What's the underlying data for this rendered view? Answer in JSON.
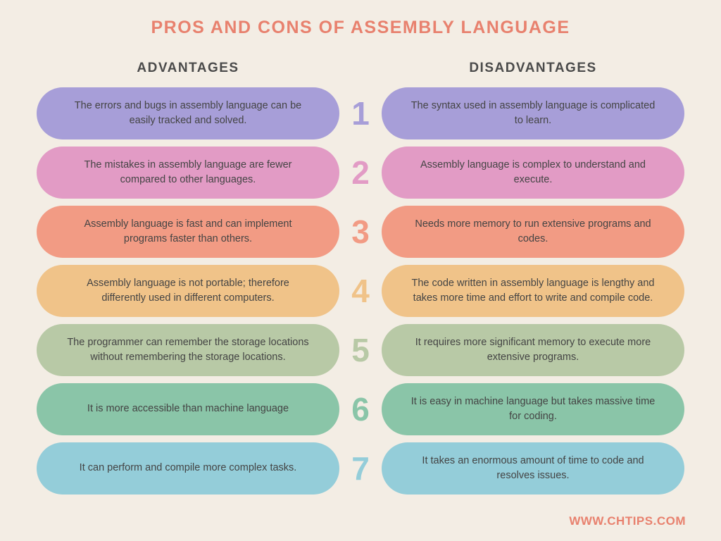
{
  "title": "PROS AND CONS OF ASSEMBLY LANGUAGE",
  "title_color": "#e8816e",
  "left_header": "ADVANTAGES",
  "right_header": "DISADVANTAGES",
  "header_color": "#4a4a4a",
  "footer": "WWW.CHTIPS.COM",
  "footer_color": "#e8816e",
  "background_color": "#f3ede4",
  "text_color": "#4a4a4a",
  "rows": [
    {
      "num": "1",
      "color": "#a79ed8",
      "num_color": "#a79ed8",
      "advantage": "The errors and bugs in assembly language can be easily tracked and solved.",
      "disadvantage": "The syntax used in assembly language is complicated to learn."
    },
    {
      "num": "2",
      "color": "#e29bc5",
      "num_color": "#e29bc5",
      "advantage": "The mistakes in assembly language are fewer compared to other languages.",
      "disadvantage": "Assembly language is complex to understand and execute."
    },
    {
      "num": "3",
      "color": "#f29b84",
      "num_color": "#f29b84",
      "advantage": "Assembly language is fast and can implement programs faster than others.",
      "disadvantage": "Needs more memory to run extensive programs and codes."
    },
    {
      "num": "4",
      "color": "#f0c389",
      "num_color": "#f0c389",
      "advantage": "Assembly language is not portable; therefore differently used in different computers.",
      "disadvantage": "The code written in assembly language is lengthy and takes more time and effort to write and compile code."
    },
    {
      "num": "5",
      "color": "#b8c9a6",
      "num_color": "#b8c9a6",
      "advantage": "The programmer can remember the storage locations without remembering the storage locations.",
      "disadvantage": "It requires more significant memory to execute more extensive programs."
    },
    {
      "num": "6",
      "color": "#8ac5a8",
      "num_color": "#8ac5a8",
      "advantage": "It is more accessible than machine language",
      "disadvantage": "It is easy in machine language but takes massive time for coding."
    },
    {
      "num": "7",
      "color": "#94cdd9",
      "num_color": "#94cdd9",
      "advantage": "It can perform and compile more complex tasks.",
      "disadvantage": "It takes an enormous amount of time to code and resolves issues."
    }
  ]
}
